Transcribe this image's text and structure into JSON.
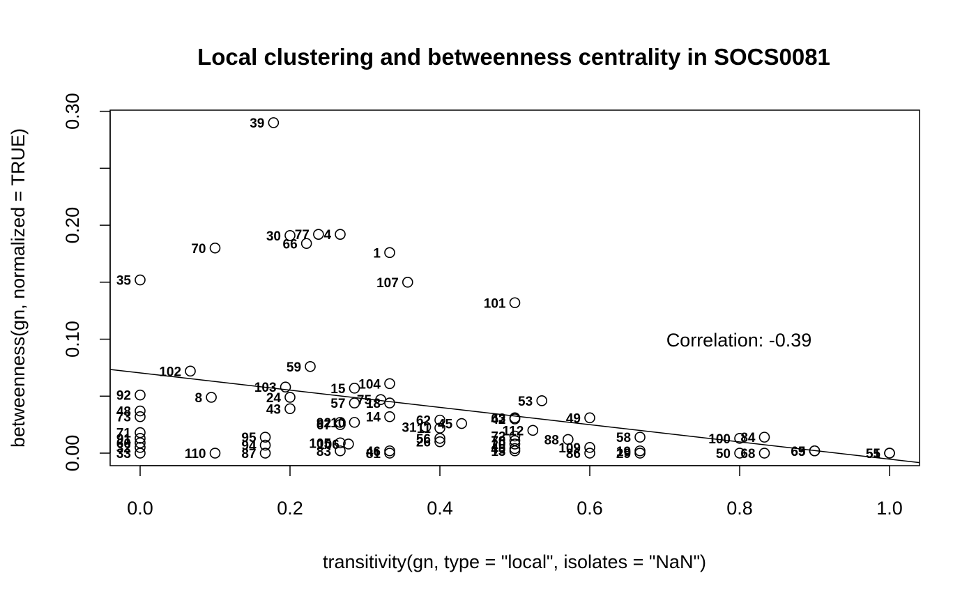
{
  "chart_data": {
    "type": "scatter",
    "title": "Local clustering and betweenness centrality in SOCS0081",
    "xlabel": "transitivity(gn, type = \"local\", isolates = \"NaN\")",
    "ylabel": "betweenness(gn, normalized = TRUE)",
    "xlim": [
      -0.04,
      1.04
    ],
    "ylim": [
      -0.011,
      0.301
    ],
    "xticks": [
      0.0,
      0.2,
      0.4,
      0.6,
      0.8,
      1.0
    ],
    "xtick_labels": [
      "0.0",
      "0.2",
      "0.4",
      "0.6",
      "0.8",
      "1.0"
    ],
    "yticks": [
      0.0,
      0.05,
      0.1,
      0.15,
      0.2,
      0.25,
      0.3
    ],
    "ytick_labels": [
      "0.00",
      "",
      "0.10",
      "",
      "0.20",
      "",
      "0.30"
    ],
    "grid": false,
    "annotation": "Correlation: -0.39",
    "regression_line": {
      "intercept": 0.0704,
      "slope": -0.0757
    },
    "points": [
      {
        "label": "39",
        "x": 0.178,
        "y": 0.29
      },
      {
        "label": "30",
        "x": 0.2,
        "y": 0.191
      },
      {
        "label": "77",
        "x": 0.238,
        "y": 0.192
      },
      {
        "label": "4",
        "x": 0.267,
        "y": 0.192
      },
      {
        "label": "66",
        "x": 0.222,
        "y": 0.184
      },
      {
        "label": "70",
        "x": 0.1,
        "y": 0.18
      },
      {
        "label": "1",
        "x": 0.333,
        "y": 0.176
      },
      {
        "label": "35",
        "x": 0.0,
        "y": 0.152
      },
      {
        "label": "107",
        "x": 0.357,
        "y": 0.15
      },
      {
        "label": "101",
        "x": 0.5,
        "y": 0.132
      },
      {
        "label": "102",
        "x": 0.067,
        "y": 0.072
      },
      {
        "label": "59",
        "x": 0.227,
        "y": 0.076
      },
      {
        "label": "103",
        "x": 0.194,
        "y": 0.058
      },
      {
        "label": "15",
        "x": 0.286,
        "y": 0.057
      },
      {
        "label": "104",
        "x": 0.333,
        "y": 0.061
      },
      {
        "label": "92",
        "x": 0.0,
        "y": 0.051
      },
      {
        "label": "8",
        "x": 0.095,
        "y": 0.049
      },
      {
        "label": "24",
        "x": 0.2,
        "y": 0.049
      },
      {
        "label": "75",
        "x": 0.321,
        "y": 0.047
      },
      {
        "label": "57",
        "x": 0.286,
        "y": 0.044
      },
      {
        "label": "18",
        "x": 0.333,
        "y": 0.044
      },
      {
        "label": "53",
        "x": 0.536,
        "y": 0.046
      },
      {
        "label": "48",
        "x": 0.0,
        "y": 0.037
      },
      {
        "label": "43",
        "x": 0.2,
        "y": 0.039
      },
      {
        "label": "73",
        "x": 0.0,
        "y": 0.032
      },
      {
        "label": "14",
        "x": 0.333,
        "y": 0.032
      },
      {
        "label": "62",
        "x": 0.4,
        "y": 0.029
      },
      {
        "label": "63",
        "x": 0.5,
        "y": 0.031
      },
      {
        "label": "42",
        "x": 0.5,
        "y": 0.03
      },
      {
        "label": "49",
        "x": 0.6,
        "y": 0.031
      },
      {
        "label": "92",
        "x": 0.267,
        "y": 0.027
      },
      {
        "label": "10",
        "x": 0.286,
        "y": 0.027
      },
      {
        "label": "67",
        "x": 0.267,
        "y": 0.025
      },
      {
        "label": "45",
        "x": 0.429,
        "y": 0.026
      },
      {
        "label": "11",
        "x": 0.4,
        "y": 0.022
      },
      {
        "label": "31",
        "x": 0.381,
        "y": 0.023
      },
      {
        "label": "112",
        "x": 0.524,
        "y": 0.02
      },
      {
        "label": "88",
        "x": 0.571,
        "y": 0.012
      },
      {
        "label": "71",
        "x": 0.0,
        "y": 0.018
      },
      {
        "label": "91",
        "x": 0.0,
        "y": 0.013
      },
      {
        "label": "95",
        "x": 0.167,
        "y": 0.014
      },
      {
        "label": "56",
        "x": 0.4,
        "y": 0.013
      },
      {
        "label": "26",
        "x": 0.4,
        "y": 0.01
      },
      {
        "label": "72",
        "x": 0.5,
        "y": 0.015
      },
      {
        "label": "78",
        "x": 0.5,
        "y": 0.011
      },
      {
        "label": "58",
        "x": 0.667,
        "y": 0.014
      },
      {
        "label": "100",
        "x": 0.8,
        "y": 0.013
      },
      {
        "label": "84",
        "x": 0.833,
        "y": 0.014
      },
      {
        "label": "60",
        "x": 0.0,
        "y": 0.009
      },
      {
        "label": "94",
        "x": 0.167,
        "y": 0.007
      },
      {
        "label": "105",
        "x": 0.267,
        "y": 0.009
      },
      {
        "label": "106",
        "x": 0.278,
        "y": 0.008
      },
      {
        "label": "20",
        "x": 0.5,
        "y": 0.008
      },
      {
        "label": "109",
        "x": 0.6,
        "y": 0.005
      },
      {
        "label": "32",
        "x": 0.0,
        "y": 0.005
      },
      {
        "label": "83",
        "x": 0.267,
        "y": 0.002
      },
      {
        "label": "46",
        "x": 0.333,
        "y": 0.002
      },
      {
        "label": "40",
        "x": 0.5,
        "y": 0.004
      },
      {
        "label": "19",
        "x": 0.667,
        "y": 0.002
      },
      {
        "label": "65",
        "x": 0.9,
        "y": 0.002
      },
      {
        "label": "33",
        "x": 0.0,
        "y": 0.0
      },
      {
        "label": "110",
        "x": 0.1,
        "y": 0.0
      },
      {
        "label": "87",
        "x": 0.167,
        "y": 0.0
      },
      {
        "label": "81",
        "x": 0.333,
        "y": 0.0
      },
      {
        "label": "13",
        "x": 0.5,
        "y": 0.002
      },
      {
        "label": "86",
        "x": 0.6,
        "y": 0.0
      },
      {
        "label": "29",
        "x": 0.667,
        "y": 0.0
      },
      {
        "label": "50",
        "x": 0.8,
        "y": 0.0
      },
      {
        "label": "68",
        "x": 0.833,
        "y": 0.0
      },
      {
        "label": "69",
        "x": 0.9,
        "y": 0.002
      },
      {
        "label": "55",
        "x": 1.0,
        "y": 0.0
      },
      {
        "label": "51",
        "x": 1.0,
        "y": 0.0
      }
    ]
  }
}
